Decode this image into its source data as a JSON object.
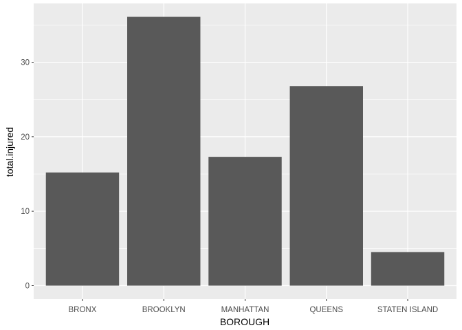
{
  "chart_data": {
    "type": "bar",
    "title": "",
    "xlabel": "BOROUGH",
    "ylabel": "total.injured",
    "categories": [
      "BRONX",
      "BROOKLYN",
      "MANHATTAN",
      "QUEENS",
      "STATEN ISLAND"
    ],
    "values": [
      15.2,
      36.1,
      17.3,
      26.8,
      4.5
    ],
    "ylim": [
      -1.8,
      37.9
    ],
    "yticks": [
      0,
      10,
      20,
      30
    ],
    "ytick_labels": [
      "0",
      "10",
      "20",
      "30"
    ],
    "grid": true,
    "legend": "none",
    "colors": {
      "panel_background": "#ebebeb",
      "grid": "#ffffff",
      "bar_fill": "#595959",
      "tick_mark": "#333333"
    }
  }
}
